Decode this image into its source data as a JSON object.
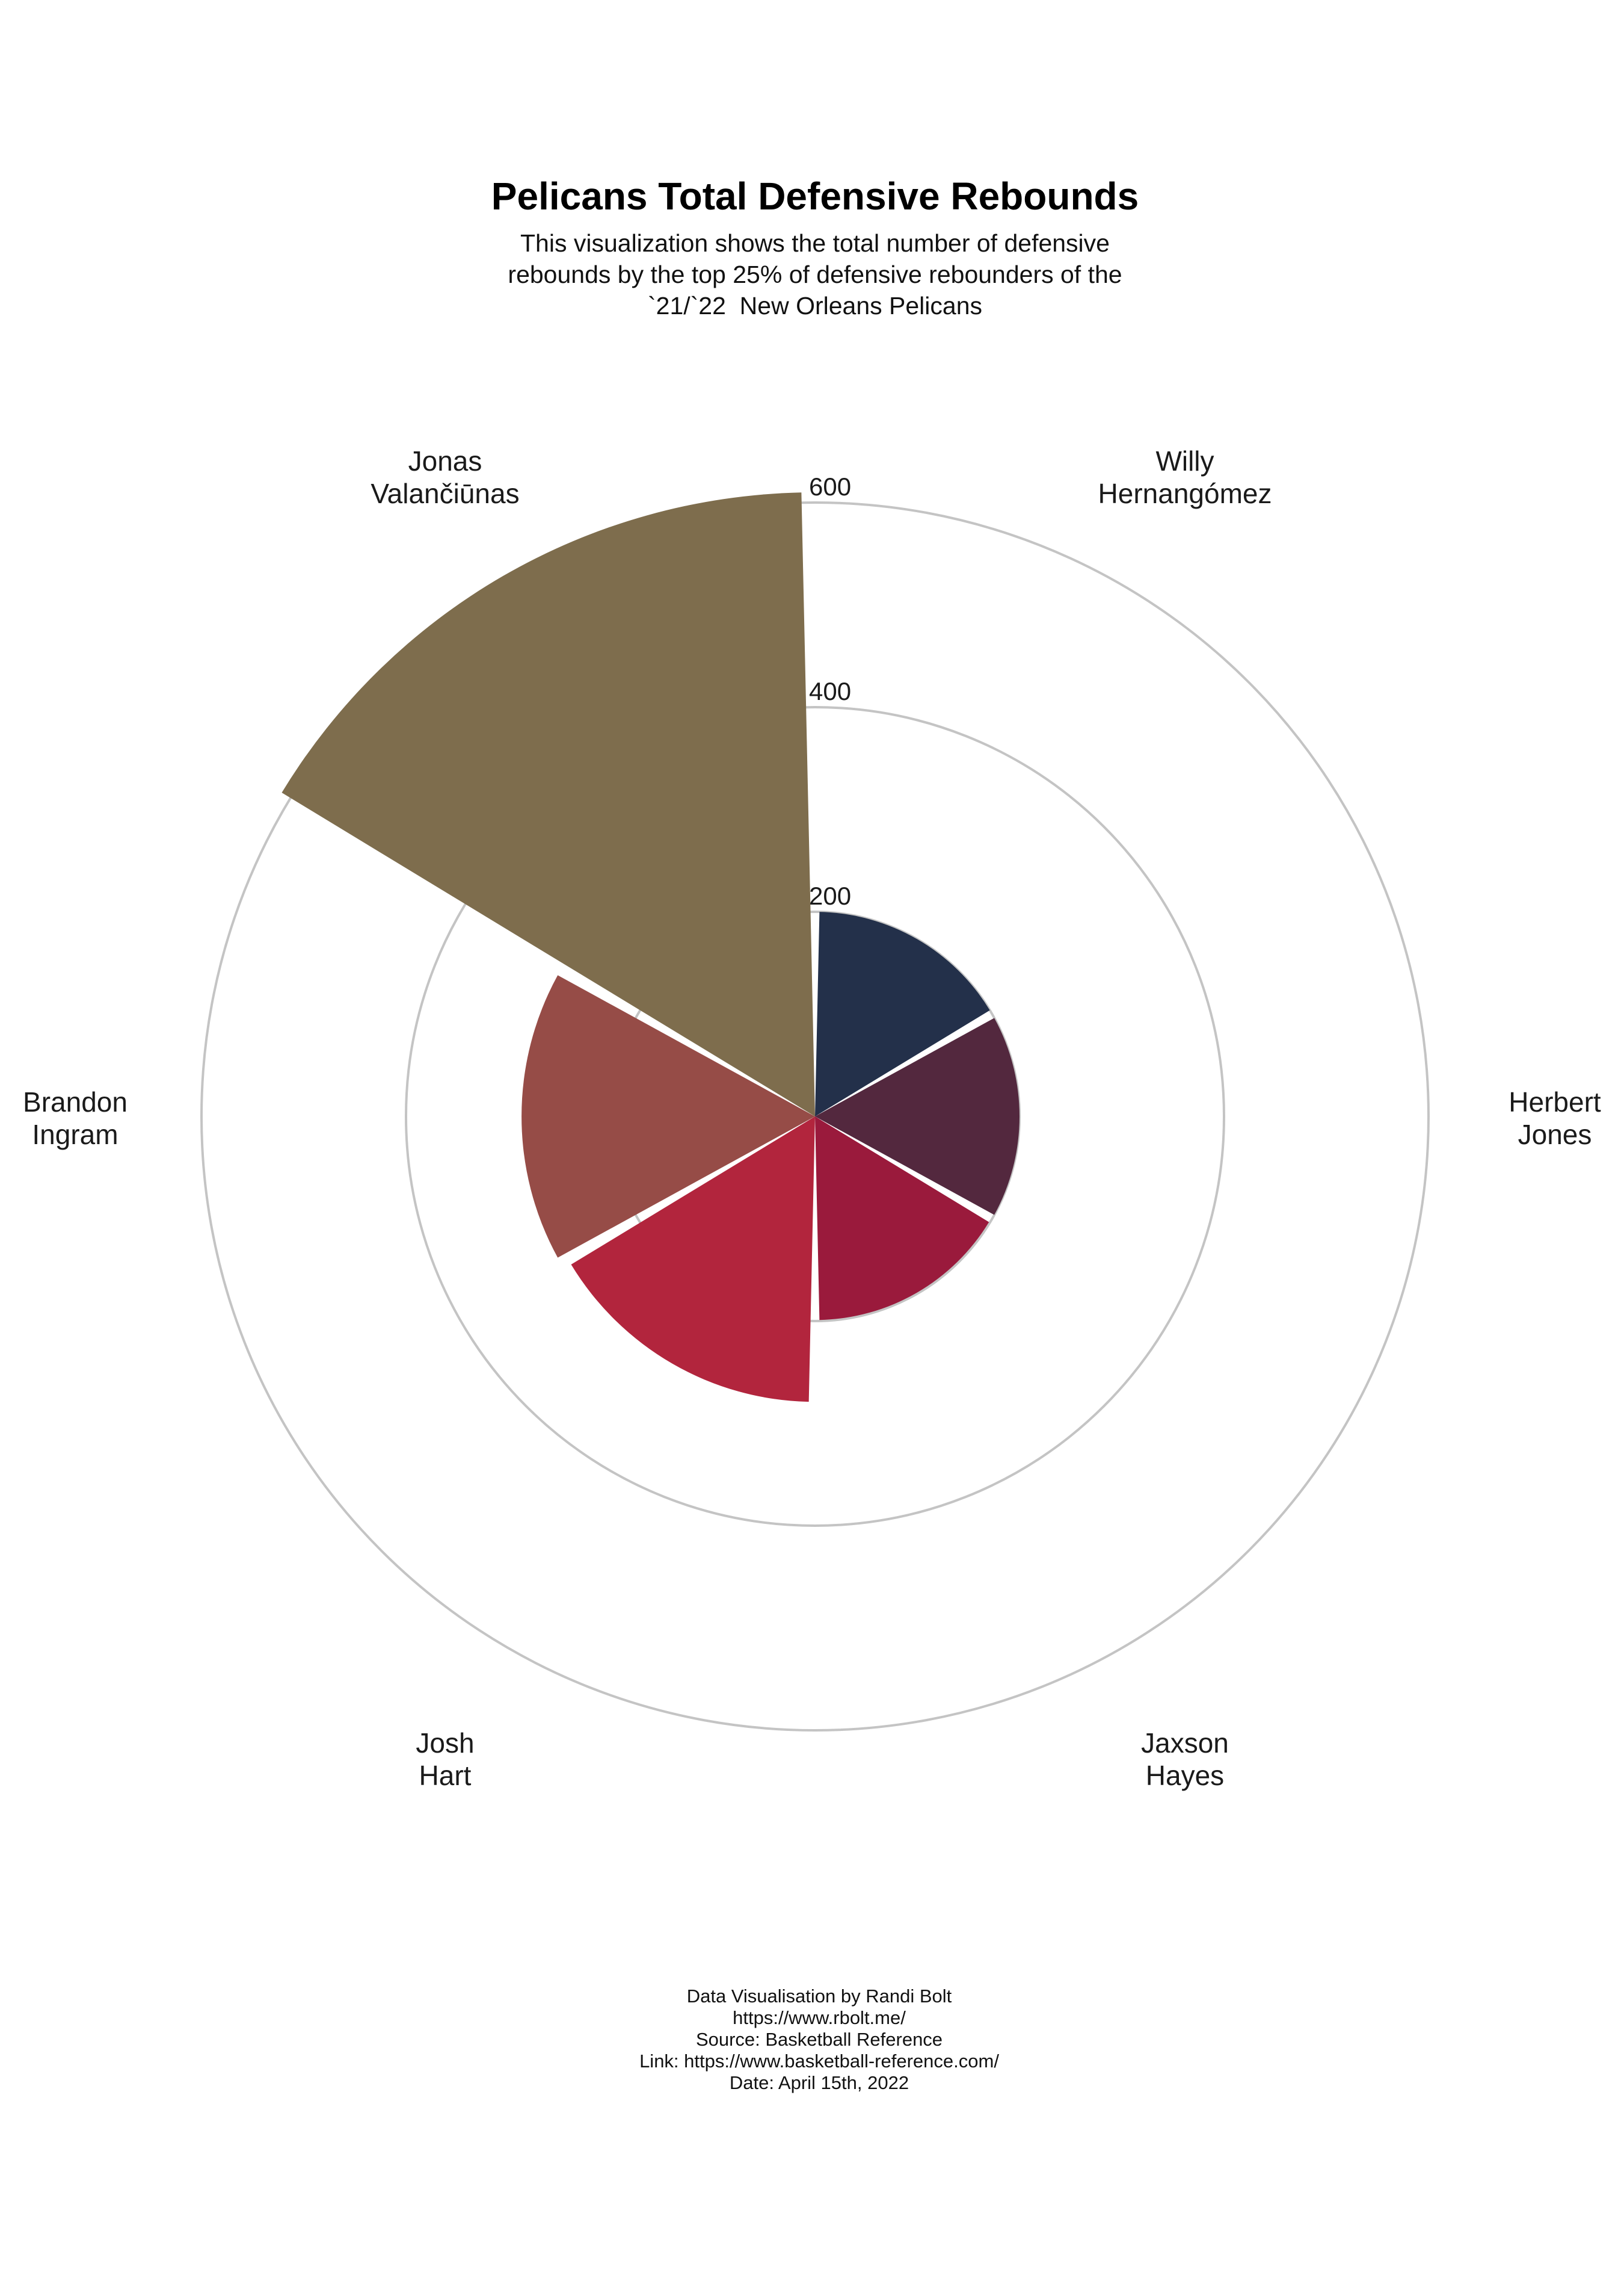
{
  "chart_data": {
    "type": "bar",
    "polar": true,
    "title": "Pelicans Total Defensive Rebounds",
    "subtitle_lines": [
      "This visualization shows the total number of defensive",
      "rebounds by the top 25% of defensive rebounders of the",
      "`21/`22  New Orleans Pelicans"
    ],
    "categories": [
      [
        "Willy",
        "Hernangómez"
      ],
      [
        "Herbert",
        "Jones"
      ],
      [
        "Jaxson",
        "Hayes"
      ],
      [
        "Josh",
        "Hart"
      ],
      [
        "Brandon",
        "Ingram"
      ],
      [
        "Jonas",
        "Valančiūnas"
      ]
    ],
    "values": [
      200,
      200,
      199,
      279,
      287,
      610
    ],
    "colors": [
      "#23304a",
      "#53283e",
      "#9a1a3c",
      "#b2253d",
      "#964c47",
      "#7e6d4d"
    ],
    "rlim": [
      0,
      600
    ],
    "rticks": [
      200,
      400,
      600
    ],
    "grid": true,
    "caption_lines": [
      "Data Visualisation by Randi Bolt",
      "https://www.rbolt.me/",
      "Source: Basketball Reference",
      "Link: https://www.basketball-reference.com/",
      "Date: April 15th, 2022"
    ]
  }
}
